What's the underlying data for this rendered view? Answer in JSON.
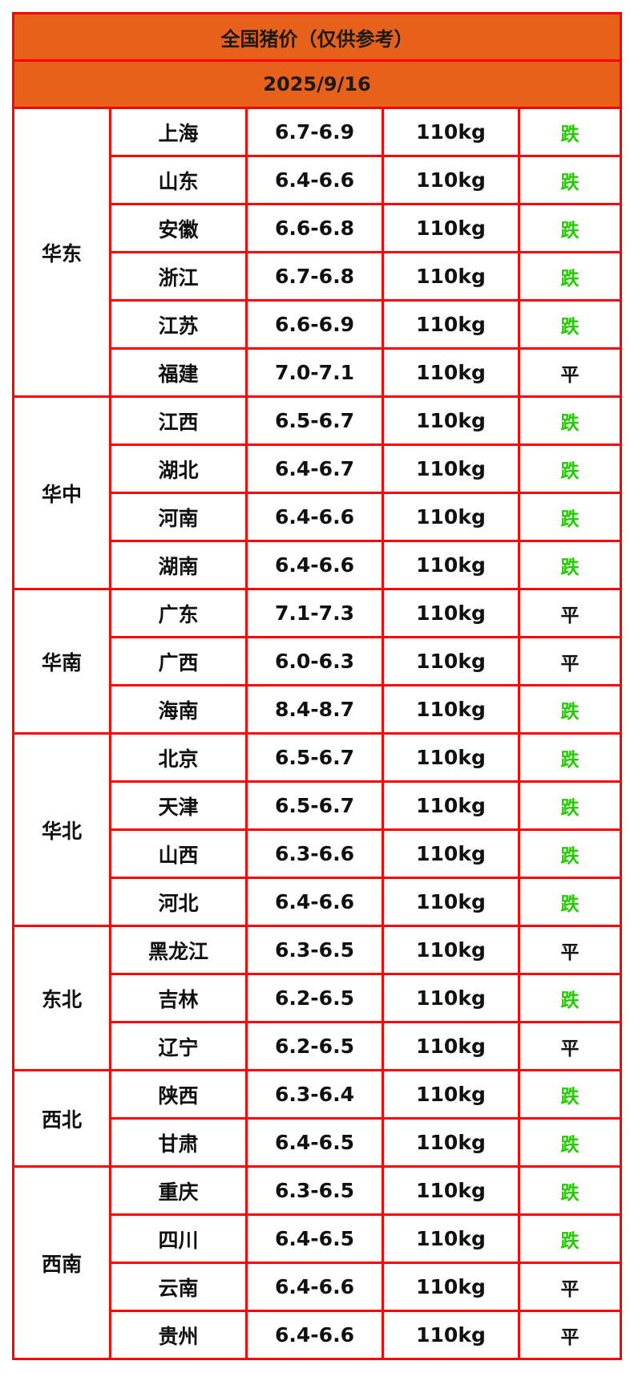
{
  "title": "全国猪价（仅供参考）",
  "date": "2025/9/16",
  "colors": {
    "header_bg": "#e8611a",
    "border": "#ff0000",
    "down": "#22cc00",
    "flat": "#111111"
  },
  "regions": [
    {
      "name": "华东",
      "rows": [
        {
          "province": "上海",
          "price": "6.7-6.9",
          "weight": "110kg",
          "trend": "跌"
        },
        {
          "province": "山东",
          "price": "6.4-6.6",
          "weight": "110kg",
          "trend": "跌"
        },
        {
          "province": "安徽",
          "price": "6.6-6.8",
          "weight": "110kg",
          "trend": "跌"
        },
        {
          "province": "浙江",
          "price": "6.7-6.8",
          "weight": "110kg",
          "trend": "跌"
        },
        {
          "province": "江苏",
          "price": "6.6-6.9",
          "weight": "110kg",
          "trend": "跌"
        },
        {
          "province": "福建",
          "price": "7.0-7.1",
          "weight": "110kg",
          "trend": "平"
        }
      ]
    },
    {
      "name": "华中",
      "rows": [
        {
          "province": "江西",
          "price": "6.5-6.7",
          "weight": "110kg",
          "trend": "跌"
        },
        {
          "province": "湖北",
          "price": "6.4-6.7",
          "weight": "110kg",
          "trend": "跌"
        },
        {
          "province": "河南",
          "price": "6.4-6.6",
          "weight": "110kg",
          "trend": "跌"
        },
        {
          "province": "湖南",
          "price": "6.4-6.6",
          "weight": "110kg",
          "trend": "跌"
        }
      ]
    },
    {
      "name": "华南",
      "rows": [
        {
          "province": "广东",
          "price": "7.1-7.3",
          "weight": "110kg",
          "trend": "平"
        },
        {
          "province": "广西",
          "price": "6.0-6.3",
          "weight": "110kg",
          "trend": "平"
        },
        {
          "province": "海南",
          "price": "8.4-8.7",
          "weight": "110kg",
          "trend": "跌"
        }
      ]
    },
    {
      "name": "华北",
      "rows": [
        {
          "province": "北京",
          "price": "6.5-6.7",
          "weight": "110kg",
          "trend": "跌"
        },
        {
          "province": "天津",
          "price": "6.5-6.7",
          "weight": "110kg",
          "trend": "跌"
        },
        {
          "province": "山西",
          "price": "6.3-6.6",
          "weight": "110kg",
          "trend": "跌"
        },
        {
          "province": "河北",
          "price": "6.4-6.6",
          "weight": "110kg",
          "trend": "跌"
        }
      ]
    },
    {
      "name": "东北",
      "rows": [
        {
          "province": "黑龙江",
          "price": "6.3-6.5",
          "weight": "110kg",
          "trend": "平"
        },
        {
          "province": "吉林",
          "price": "6.2-6.5",
          "weight": "110kg",
          "trend": "跌"
        },
        {
          "province": "辽宁",
          "price": "6.2-6.5",
          "weight": "110kg",
          "trend": "平"
        }
      ]
    },
    {
      "name": "西北",
      "rows": [
        {
          "province": "陕西",
          "price": "6.3-6.4",
          "weight": "110kg",
          "trend": "跌"
        },
        {
          "province": "甘肃",
          "price": "6.4-6.5",
          "weight": "110kg",
          "trend": "跌"
        }
      ]
    },
    {
      "name": "西南",
      "rows": [
        {
          "province": "重庆",
          "price": "6.3-6.5",
          "weight": "110kg",
          "trend": "跌"
        },
        {
          "province": "四川",
          "price": "6.4-6.5",
          "weight": "110kg",
          "trend": "跌"
        },
        {
          "province": "云南",
          "price": "6.4-6.6",
          "weight": "110kg",
          "trend": "平"
        },
        {
          "province": "贵州",
          "price": "6.4-6.6",
          "weight": "110kg",
          "trend": "平"
        }
      ]
    }
  ]
}
